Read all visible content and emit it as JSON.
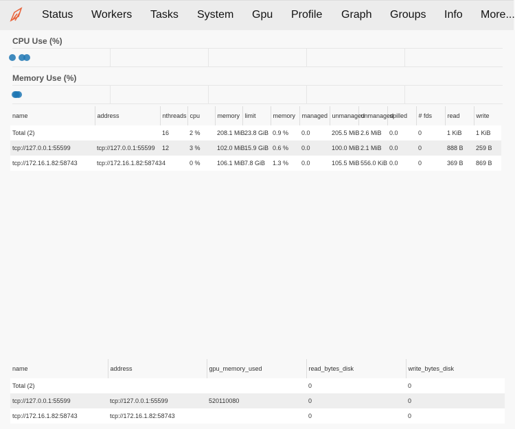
{
  "nav": {
    "items": [
      "Status",
      "Workers",
      "Tasks",
      "System",
      "Gpu",
      "Profile",
      "Graph",
      "Groups",
      "Info",
      "More..."
    ]
  },
  "cpu_plot": {
    "title": "CPU Use (%)",
    "values": [
      2,
      3,
      0
    ],
    "color": "#1f77b4"
  },
  "memory_plot": {
    "title": "Memory Use (%)",
    "values": [
      0.9,
      0.6,
      1.3
    ],
    "color": "#1f77b4"
  },
  "workers_table": {
    "columns": [
      "name",
      "address",
      "nthreads",
      "cpu",
      "memory",
      "limit",
      "memory",
      "managed",
      "unmanaged",
      "unmanaged",
      "spilled",
      "# fds",
      "read",
      "write"
    ],
    "rows": [
      [
        "Total (2)",
        "",
        "16",
        "2 %",
        "208.1 MiB",
        "23.8 GiB",
        "0.9 %",
        "0.0",
        "205.5 MiB",
        "2.6 MiB",
        "0.0",
        "0",
        "1 KiB",
        "1 KiB"
      ],
      [
        "tcp://127.0.0.1:55599",
        "tcp://127.0.0.1:55599",
        "12",
        "3 %",
        "102.0 MiB",
        "15.9 GiB",
        "0.6 %",
        "0.0",
        "100.0 MiB",
        "2.1 MiB",
        "0.0",
        "0",
        "888 B",
        "259 B"
      ],
      [
        "tcp://172.16.1.82:58743",
        "tcp://172.16.1.82:58743",
        "4",
        "0 %",
        "106.1 MiB",
        "7.8 GiB",
        "1.3 %",
        "0.0",
        "105.5 MiB",
        "556.0 KiB",
        "0.0",
        "0",
        "369 B",
        "869 B"
      ]
    ]
  },
  "gpu_table": {
    "columns": [
      "name",
      "address",
      "gpu_memory_used",
      "read_bytes_disk",
      "write_bytes_disk"
    ],
    "rows": [
      [
        "Total (2)",
        "",
        "",
        "0",
        "0"
      ],
      [
        "tcp://127.0.0.1:55599",
        "tcp://127.0.0.1:55599",
        "520110080",
        "0",
        "0"
      ],
      [
        "tcp://172.16.1.82:58743",
        "tcp://172.16.1.82:58743",
        "",
        "0",
        "0"
      ]
    ]
  }
}
